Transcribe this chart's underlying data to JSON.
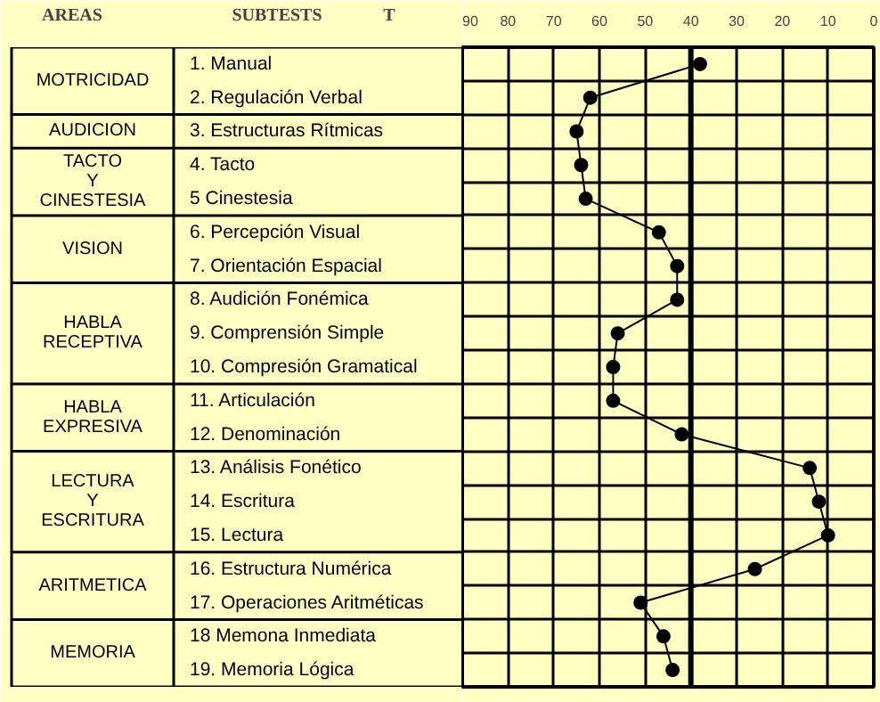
{
  "chart_data": {
    "type": "line",
    "orientation": "horizontal",
    "xlabel": "T",
    "ylabel": "SUBTESTS",
    "categories": [
      "1. Manual",
      "2. Regulación Verbal",
      "3. Estructuras Rítmicas",
      "4. Tacto",
      "5 Cinestesia",
      "6. Percepción Visual",
      "7. Orientación Espacial",
      "8. Audición Fonémica",
      "9. Comprensión Simple",
      "10. Compresión Gramatical",
      "11. Articulación",
      "12. Denominación",
      "13. Análisis Fonético",
      "14. Escritura",
      "15. Lectura",
      "16. Estructura Numérica",
      "17. Operaciones Aritméticas",
      "18 Memona Inmediata",
      "19. Memoria Lógica"
    ],
    "series": [
      {
        "color": "#000000",
        "values": [
          38,
          62,
          65,
          64,
          63,
          47,
          43,
          43,
          56,
          57,
          57,
          42,
          14,
          12,
          10,
          26,
          51,
          46,
          44
        ]
      }
    ],
    "xlim": [
      90,
      0
    ],
    "xticks": [
      90,
      80,
      70,
      60,
      50,
      40,
      30,
      20,
      10,
      0
    ],
    "ref_lines": [
      {
        "axis": "x",
        "value": 40,
        "color": "#000000"
      }
    ],
    "annotations": [
      "AREAS",
      "MOTRICIDAD",
      "AUDICION",
      "TACTO\nY\nCINESTESIA",
      "VISION",
      "HABLA\nRECEPTIVA",
      "HABLA\nEXPRESIVA",
      "LECTURA\nY\nESCRITURA",
      "ARITMETICA",
      "MEMORIA"
    ],
    "grid": true,
    "marker": "circle",
    "line_style": "solid"
  }
}
